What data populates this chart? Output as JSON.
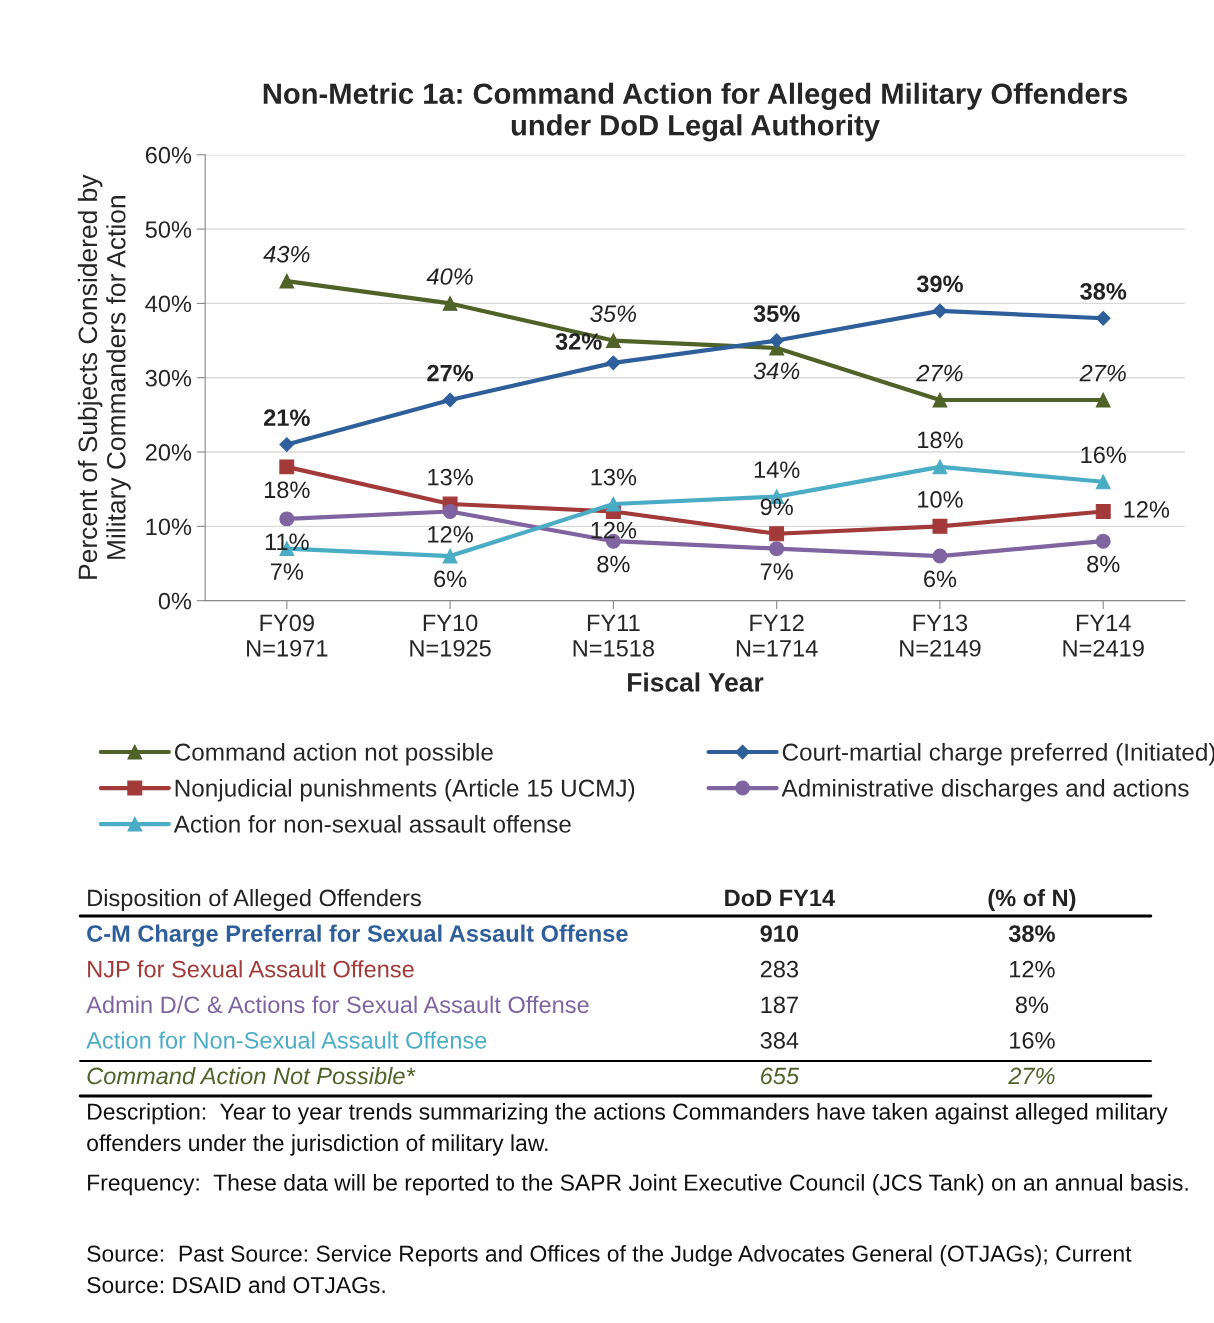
{
  "chart_data": {
    "type": "line",
    "title": "Non-Metric 1a: Command Action for Alleged Military Offenders\nunder DoD Legal Authority",
    "xlabel": "Fiscal Year",
    "ylabel": "Percent of Subjects Considered by\nMilitary Commanders for Action",
    "categories": [
      "FY09\nN=1971",
      "FY10\nN=1925",
      "FY11\nN=1518",
      "FY12\nN=1714",
      "FY13\nN=2149",
      "FY14\nN=2419"
    ],
    "series": [
      {
        "name": "Command action not possible",
        "color": "#4f6228",
        "marker": "triangle",
        "values": [
          43,
          40,
          35,
          34,
          27,
          27
        ],
        "value_labels": [
          "43%",
          "40%",
          "35%",
          "34%",
          "27%",
          "27%"
        ]
      },
      {
        "name": "Court-martial charge preferred (Initiated)",
        "color": "#2e5f9b",
        "marker": "diamond",
        "values": [
          21,
          27,
          32,
          35,
          39,
          38
        ],
        "value_labels": [
          "21%",
          "27%",
          "32%",
          "35%",
          "39%",
          "38%"
        ]
      },
      {
        "name": "Nonjudicial punishments (Article 15 UCMJ)",
        "color": "#a33a3a",
        "marker": "square",
        "values": [
          18,
          13,
          12,
          9,
          10,
          12
        ],
        "value_labels": [
          "18%",
          "13%",
          "12%",
          "9%",
          "10%",
          "12%"
        ]
      },
      {
        "name": "Administrative discharges and actions",
        "color": "#8064a2",
        "marker": "circle",
        "values": [
          11,
          12,
          8,
          7,
          6,
          8
        ],
        "value_labels": [
          "11%",
          "12%",
          "8%",
          "7%",
          "6%",
          "8%"
        ]
      },
      {
        "name": "Action for non-sexual assault offense",
        "color": "#4bacc6",
        "marker": "triangle",
        "values": [
          7,
          6,
          13,
          14,
          18,
          16
        ],
        "value_labels": [
          "7%",
          "6%",
          "13%",
          "14%",
          "18%",
          "16%"
        ]
      }
    ],
    "ylim": [
      0,
      60
    ],
    "yticks": [
      {
        "value": 0,
        "label": "0%"
      },
      {
        "value": 10,
        "label": "10%"
      },
      {
        "value": 20,
        "label": "20%"
      },
      {
        "value": 30,
        "label": "30%"
      },
      {
        "value": 40,
        "label": "40%"
      },
      {
        "value": 50,
        "label": "50%"
      },
      {
        "value": 60,
        "label": "60%"
      }
    ],
    "grid": "y",
    "legend": "bottom",
    "line_style": "solid",
    "annotations": [
      "Disposition of Alleged Offenders",
      "DoD FY14",
      "(% of N)",
      "C-M Charge Preferral for Sexual Assault Offense",
      "910",
      "38%",
      "NJP for Sexual Assault Offense",
      "283",
      "12%",
      "Admin D/C & Actions for Sexual Assault Offense",
      "187",
      "8%",
      "Action for Non-Sexual Assault Offense",
      "384",
      "16%",
      "Command Action Not Possible*",
      "655",
      "27%",
      "Description:  Year to year trends summarizing the actions Commanders have taken against alleged military offenders under the jurisdiction of military law.",
      "Frequency:  These data will be reported to the SAPR Joint Executive Council (JCS Tank) on an annual basis.",
      "Source:  Past Source: Service Reports and Offices of the Judge Advocates General (OTJAGs); Current Source: DSAID and OTJAGs."
    ]
  }
}
